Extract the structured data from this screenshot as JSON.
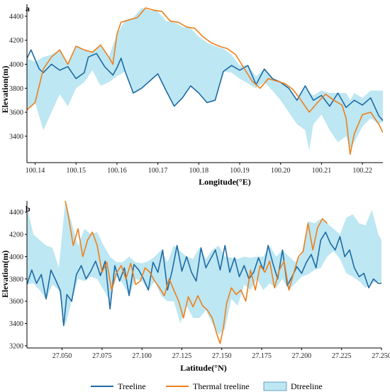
{
  "colors": {
    "treeline": "#1f6aa5",
    "thermal": "#ee7f1b",
    "dtreeline_fill": "#bde7f2",
    "axis": "#000000"
  },
  "legend": {
    "treeline": "Treeline",
    "thermal": "Thermal treeline",
    "dtreeline": "Dtreeline"
  },
  "chart_data": [
    {
      "type": "line",
      "panel_label": "a",
      "xlabel": "Longitude(°E)",
      "ylabel": "Elevation(m)",
      "xlim": [
        100.138,
        100.225
      ],
      "ylim": [
        3180,
        4500
      ],
      "xticks": [
        100.14,
        100.15,
        100.16,
        100.17,
        100.18,
        100.19,
        100.2,
        100.21,
        100.22
      ],
      "xtick_labels": [
        "100.14",
        "100.15",
        "100.16",
        "100.17",
        "100.18",
        "100.19",
        "100.20",
        "100.21",
        "100.22"
      ],
      "yticks": [
        3400,
        3600,
        3800,
        4000,
        4200,
        4400
      ],
      "ytick_labels": [
        "3400",
        "3600",
        "3800",
        "4000",
        "4200",
        "4400"
      ],
      "grid": false,
      "legend_position": "bottom",
      "series": [
        {
          "name": "Treeline",
          "key": "treeline",
          "x": [
            100.138,
            100.139,
            100.14,
            100.141,
            100.142,
            100.144,
            100.146,
            100.148,
            100.15,
            100.152,
            100.153,
            100.155,
            100.157,
            100.159,
            100.16,
            100.161,
            100.162,
            100.164,
            100.166,
            100.168,
            100.17,
            100.172,
            100.174,
            100.176,
            100.178,
            100.18,
            100.182,
            100.184,
            100.186,
            100.188,
            100.19,
            100.192,
            100.194,
            100.196,
            100.198,
            100.2,
            100.202,
            100.204,
            100.206,
            100.208,
            100.21,
            100.212,
            100.214,
            100.216,
            100.218,
            100.22,
            100.222,
            100.224,
            100.225
          ],
          "y": [
            4050,
            4120,
            4040,
            3960,
            3930,
            4000,
            3950,
            3980,
            3880,
            3930,
            4060,
            4090,
            3980,
            3910,
            3970,
            4050,
            3940,
            3760,
            3800,
            3860,
            3920,
            3780,
            3650,
            3720,
            3820,
            3760,
            3680,
            3700,
            3940,
            3990,
            3950,
            3990,
            3830,
            3960,
            3880,
            3850,
            3800,
            3700,
            3820,
            3700,
            3740,
            3650,
            3760,
            3640,
            3700,
            3660,
            3720,
            3570,
            3530
          ]
        },
        {
          "name": "Thermal treeline",
          "key": "thermal",
          "x": [
            100.138,
            100.14,
            100.142,
            100.144,
            100.146,
            100.148,
            100.15,
            100.152,
            100.154,
            100.156,
            100.158,
            100.159,
            100.16,
            100.161,
            100.163,
            100.165,
            100.167,
            100.169,
            100.171,
            100.173,
            100.175,
            100.177,
            100.179,
            100.181,
            100.183,
            100.185,
            100.187,
            100.189,
            100.191,
            100.193,
            100.195,
            100.197,
            100.199,
            100.201,
            100.203,
            100.205,
            100.207,
            100.209,
            100.211,
            100.213,
            100.215,
            100.216,
            100.217,
            100.218,
            100.22,
            100.222,
            100.224,
            100.225
          ],
          "y": [
            3620,
            3680,
            3960,
            4060,
            4120,
            4000,
            4150,
            4120,
            4100,
            4160,
            4060,
            4000,
            4250,
            4350,
            4370,
            4390,
            4470,
            4450,
            4440,
            4360,
            4350,
            4310,
            4300,
            4230,
            4180,
            4150,
            4130,
            4080,
            3970,
            3860,
            3800,
            3880,
            3860,
            3840,
            3790,
            3700,
            3600,
            3680,
            3750,
            3700,
            3660,
            3550,
            3250,
            3420,
            3580,
            3600,
            3500,
            3430
          ]
        }
      ],
      "band": {
        "name": "Dtreeline",
        "key": "dtreeline",
        "x": [
          100.138,
          100.14,
          100.142,
          100.144,
          100.146,
          100.148,
          100.15,
          100.152,
          100.154,
          100.156,
          100.158,
          100.16,
          100.162,
          100.164,
          100.166,
          100.168,
          100.17,
          100.172,
          100.174,
          100.176,
          100.178,
          100.18,
          100.182,
          100.184,
          100.186,
          100.188,
          100.19,
          100.192,
          100.194,
          100.196,
          100.198,
          100.2,
          100.202,
          100.204,
          100.206,
          100.207,
          100.208,
          100.21,
          100.212,
          100.214,
          100.216,
          100.217,
          100.218,
          100.22,
          100.222,
          100.224,
          100.225
        ],
        "lower": [
          3620,
          3680,
          3450,
          3600,
          3750,
          3650,
          3800,
          3850,
          3950,
          3820,
          3850,
          3900,
          3940,
          3760,
          3800,
          3860,
          3920,
          3780,
          3650,
          3720,
          3820,
          3760,
          3680,
          3700,
          3940,
          3930,
          3880,
          3840,
          3800,
          3850,
          3780,
          3700,
          3600,
          3500,
          3450,
          3280,
          3500,
          3580,
          3450,
          3350,
          3400,
          3300,
          3350,
          3480,
          3550,
          3500,
          3520
        ],
        "upper": [
          4050,
          4020,
          4060,
          4080,
          4120,
          4000,
          4150,
          4120,
          4100,
          4160,
          4060,
          4250,
          4370,
          4390,
          4470,
          4450,
          4440,
          4360,
          4350,
          4310,
          4300,
          4230,
          4180,
          4150,
          4130,
          4080,
          3990,
          3990,
          3900,
          3960,
          3880,
          3860,
          3800,
          3700,
          3820,
          3760,
          3740,
          3780,
          3760,
          3760,
          3760,
          3700,
          3760,
          3720,
          3780,
          3780,
          3780
        ]
      }
    },
    {
      "type": "line",
      "panel_label": "b",
      "xlabel": "Latitude(°N)",
      "ylabel": "Elevation(m)",
      "xlim": [
        27.028,
        27.25
      ],
      "ylim": [
        3180,
        4500
      ],
      "xticks": [
        27.05,
        27.075,
        27.1,
        27.125,
        27.15,
        27.175,
        27.2,
        27.225,
        27.25
      ],
      "xtick_labels": [
        "27.050",
        "27.075",
        "27.100",
        "27.125",
        "27.150",
        "27.175",
        "27.200",
        "27.225",
        "27.250"
      ],
      "yticks": [
        3200,
        3400,
        3600,
        3800,
        4000,
        4200,
        4400
      ],
      "ytick_labels": [
        "3200",
        "3400",
        "3600",
        "3800",
        "4000",
        "4200",
        "4400"
      ],
      "grid": false,
      "legend_position": "bottom",
      "series": [
        {
          "name": "Treeline",
          "key": "treeline",
          "x": [
            27.028,
            27.031,
            27.034,
            27.037,
            27.04,
            27.043,
            27.046,
            27.049,
            27.051,
            27.053,
            27.056,
            27.059,
            27.062,
            27.065,
            27.068,
            27.071,
            27.074,
            27.077,
            27.08,
            27.083,
            27.086,
            27.089,
            27.092,
            27.095,
            27.098,
            27.101,
            27.104,
            27.107,
            27.11,
            27.113,
            27.116,
            27.119,
            27.122,
            27.125,
            27.128,
            27.131,
            27.134,
            27.137,
            27.14,
            27.143,
            27.146,
            27.149,
            27.152,
            27.155,
            27.158,
            27.161,
            27.164,
            27.167,
            27.17,
            27.173,
            27.176,
            27.179,
            27.182,
            27.185,
            27.188,
            27.191,
            27.194,
            27.197,
            27.2,
            27.203,
            27.206,
            27.209,
            27.212,
            27.215,
            27.218,
            27.221,
            27.224,
            27.227,
            27.23,
            27.233,
            27.236,
            27.239,
            27.242,
            27.245,
            27.248,
            27.25
          ],
          "y": [
            3750,
            3880,
            3760,
            3840,
            3620,
            3880,
            3790,
            3690,
            3380,
            3660,
            3600,
            3840,
            3920,
            3800,
            3870,
            3960,
            3830,
            3960,
            3530,
            3920,
            3780,
            3900,
            3650,
            3930,
            3880,
            3800,
            3700,
            3950,
            3860,
            4060,
            3700,
            3880,
            4100,
            3870,
            4000,
            3860,
            3780,
            4080,
            3900,
            3980,
            4060,
            3880,
            4100,
            3860,
            3990,
            3820,
            3920,
            3800,
            3860,
            3990,
            3880,
            4100,
            3940,
            3800,
            4060,
            3740,
            3820,
            3910,
            3850,
            3950,
            4020,
            3900,
            4150,
            4220,
            4120,
            4060,
            4180,
            4000,
            4060,
            3900,
            3820,
            3850,
            3720,
            3800,
            3760,
            3760
          ]
        },
        {
          "name": "Thermal treeline",
          "key": "thermal",
          "x": [
            27.052,
            27.054,
            27.057,
            27.06,
            27.063,
            27.066,
            27.069,
            27.072,
            27.075,
            27.078,
            27.081,
            27.084,
            27.087,
            27.09,
            27.093,
            27.096,
            27.099,
            27.102,
            27.105,
            27.108,
            27.111,
            27.114,
            27.117,
            27.12,
            27.123,
            27.126,
            27.129,
            27.132,
            27.135,
            27.138,
            27.141,
            27.144,
            27.147,
            27.149,
            27.151,
            27.153,
            27.156,
            27.159,
            27.162,
            27.165,
            27.168,
            27.171,
            27.174,
            27.177,
            27.18,
            27.183,
            27.186,
            27.189,
            27.192,
            27.195,
            27.198,
            27.201,
            27.204,
            27.207,
            27.21,
            27.213,
            27.216
          ],
          "y": [
            4500,
            4360,
            4100,
            4250,
            4000,
            4150,
            4220,
            4100,
            3860,
            3950,
            3700,
            3850,
            3920,
            3800,
            3940,
            3750,
            3780,
            3900,
            3860,
            3780,
            3720,
            3650,
            3800,
            3700,
            3600,
            3450,
            3640,
            3550,
            3650,
            3560,
            3520,
            3450,
            3300,
            3220,
            3360,
            3580,
            3720,
            3660,
            3700,
            3600,
            3880,
            3700,
            3920,
            3860,
            3960,
            3720,
            3880,
            3960,
            3700,
            3850,
            4000,
            4050,
            4300,
            4060,
            4260,
            4340,
            4300
          ]
        }
      ],
      "band": {
        "name": "Dtreeline",
        "key": "dtreeline",
        "x": [
          27.028,
          27.032,
          27.036,
          27.04,
          27.044,
          27.048,
          27.052,
          27.056,
          27.06,
          27.064,
          27.068,
          27.072,
          27.076,
          27.08,
          27.084,
          27.088,
          27.092,
          27.096,
          27.1,
          27.104,
          27.108,
          27.112,
          27.116,
          27.12,
          27.124,
          27.128,
          27.132,
          27.136,
          27.14,
          27.144,
          27.148,
          27.152,
          27.156,
          27.16,
          27.164,
          27.168,
          27.172,
          27.176,
          27.18,
          27.184,
          27.188,
          27.192,
          27.196,
          27.2,
          27.204,
          27.208,
          27.212,
          27.216,
          27.22,
          27.224,
          27.228,
          27.232,
          27.236,
          27.24,
          27.244,
          27.248,
          27.25
        ],
        "lower": [
          3750,
          3760,
          3700,
          3620,
          3750,
          3700,
          3380,
          3600,
          3800,
          3780,
          3820,
          3800,
          3700,
          3600,
          3820,
          3760,
          3650,
          3800,
          3780,
          3700,
          3780,
          3650,
          3600,
          3600,
          3400,
          3560,
          3450,
          3450,
          3520,
          3400,
          3300,
          3350,
          3620,
          3560,
          3750,
          3700,
          3800,
          3700,
          3760,
          3720,
          3800,
          3700,
          3760,
          3820,
          3840,
          3880,
          3900,
          4000,
          4050,
          3980,
          3850,
          3820,
          3780,
          3720,
          3760,
          3780,
          3760
        ],
        "upper": [
          4450,
          4200,
          4150,
          4100,
          4080,
          3900,
          4500,
          4300,
          4100,
          4250,
          4200,
          4220,
          4100,
          4000,
          3950,
          3950,
          4000,
          3950,
          3940,
          3960,
          4000,
          4060,
          3950,
          4100,
          4050,
          4000,
          3980,
          4080,
          3980,
          4060,
          4100,
          4000,
          3990,
          3980,
          4000,
          3990,
          4000,
          4000,
          4100,
          4000,
          4060,
          4000,
          3950,
          4020,
          4320,
          4300,
          4340,
          4300,
          4250,
          4200,
          4350,
          4380,
          4300,
          4280,
          4420,
          4200,
          4150
        ]
      }
    }
  ]
}
